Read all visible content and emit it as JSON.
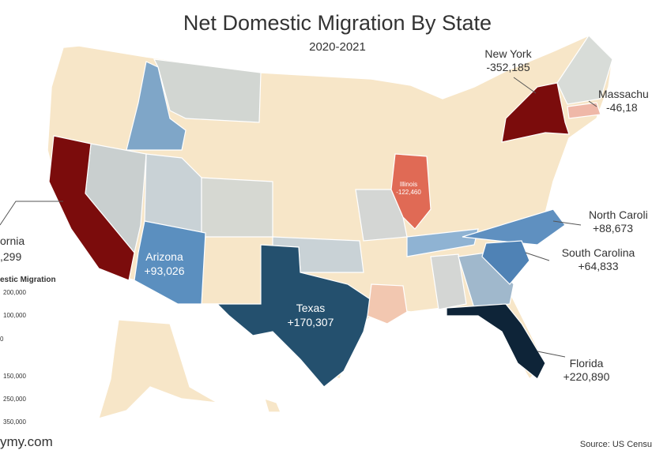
{
  "header": {
    "title": "Net Domestic Migration By State",
    "subtitle": "2020-2021"
  },
  "labels": [
    {
      "name": "New York",
      "value": "-352,185"
    },
    {
      "name": "Massachu",
      "value": "-46,18"
    },
    {
      "name": "North Caroli",
      "value": "+88,673"
    },
    {
      "name": "South Carolina",
      "value": "+64,833"
    },
    {
      "name": "Florida",
      "value": "+220,890"
    },
    {
      "name": "Texas",
      "value": "+170,307"
    },
    {
      "name": "Arizona",
      "value": "+93,026"
    },
    {
      "name": "Illinois",
      "value": "-122,460"
    },
    {
      "name": "ornia",
      "value": ",299"
    }
  ],
  "legend": {
    "title": "estic Migration",
    "items": [
      "200,000",
      "100,000",
      "0",
      "150,000",
      "250,000",
      "350,000"
    ]
  },
  "footer": {
    "site": "ymy.com",
    "source": "Source: US Censu"
  }
}
